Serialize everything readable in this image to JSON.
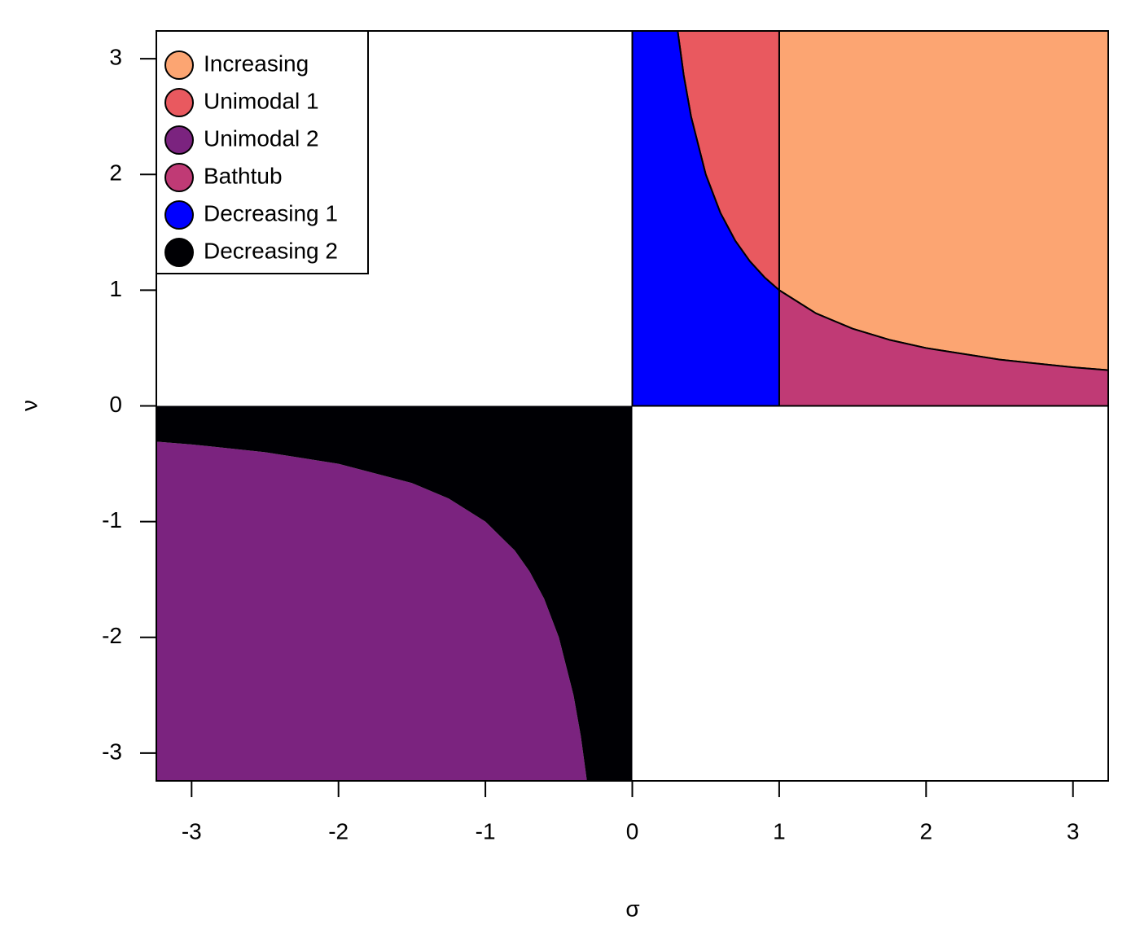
{
  "chart_data": {
    "type": "region",
    "xlabel": "σ",
    "ylabel": "ν",
    "xlim": [
      -3.24,
      3.24
    ],
    "ylim": [
      -3.24,
      3.24
    ],
    "xticks": [
      -3,
      -2,
      -1,
      0,
      1,
      2,
      3
    ],
    "yticks": [
      -3,
      -2,
      -1,
      0,
      1,
      2,
      3
    ],
    "legend": "topleft",
    "series": [
      {
        "name": "Increasing",
        "color": "#FCA572",
        "outline": true,
        "x": [
          1,
          3.24,
          3.24,
          3,
          2.5,
          2,
          1.75,
          1.5,
          1.25,
          1
        ],
        "y": [
          3.24,
          3.24,
          0.309,
          0.333,
          0.4,
          0.5,
          0.571,
          0.667,
          0.8,
          1
        ]
      },
      {
        "name": "Unimodal 1",
        "color": "#E9595F",
        "outline": true,
        "x": [
          0.309,
          1,
          1,
          0.9,
          0.8,
          0.7,
          0.6,
          0.5,
          0.4,
          0.35
        ],
        "y": [
          3.24,
          3.24,
          1,
          1.111,
          1.25,
          1.429,
          1.667,
          2,
          2.5,
          2.857
        ]
      },
      {
        "name": "Unimodal 2",
        "color": "#7B237F",
        "outline": false,
        "x": [
          -3.24,
          -0.309,
          -0.35,
          -0.4,
          -0.5,
          -0.6,
          -0.7,
          -0.8,
          -1,
          -1.25,
          -1.5,
          -2,
          -2.5,
          -3,
          -3.24
        ],
        "y": [
          -3.24,
          -3.24,
          -2.857,
          -2.5,
          -2,
          -1.667,
          -1.429,
          -1.25,
          -1,
          -0.8,
          -0.667,
          -0.5,
          -0.4,
          -0.333,
          -0.309
        ]
      },
      {
        "name": "Bathtub",
        "color": "#C03A75",
        "outline": true,
        "x": [
          1,
          3.24,
          3.24,
          3,
          2.5,
          2,
          1.75,
          1.5,
          1.25,
          1
        ],
        "y": [
          0,
          0,
          0.309,
          0.333,
          0.4,
          0.5,
          0.571,
          0.667,
          0.8,
          1
        ]
      },
      {
        "name": "Decreasing 1",
        "color": "#0000FF",
        "outline": true,
        "x": [
          0,
          1,
          1,
          0.9,
          0.8,
          0.7,
          0.6,
          0.5,
          0.4,
          0.35,
          0.309,
          0
        ],
        "y": [
          0,
          0,
          1,
          1.111,
          1.25,
          1.429,
          1.667,
          2,
          2.5,
          2.857,
          3.24,
          3.24
        ]
      },
      {
        "name": "Decreasing 2",
        "color": "#000004",
        "outline": false,
        "x": [
          -3.24,
          0,
          0,
          -0.309,
          -0.35,
          -0.4,
          -0.5,
          -0.6,
          -0.7,
          -0.8,
          -1,
          -1.25,
          -1.5,
          -2,
          -2.5,
          -3,
          -3.24
        ],
        "y": [
          0,
          0,
          -3.24,
          -3.24,
          -2.857,
          -2.5,
          -2,
          -1.667,
          -1.429,
          -1.25,
          -1,
          -0.8,
          -0.667,
          -0.5,
          -0.4,
          -0.333,
          -0.309
        ]
      }
    ]
  }
}
